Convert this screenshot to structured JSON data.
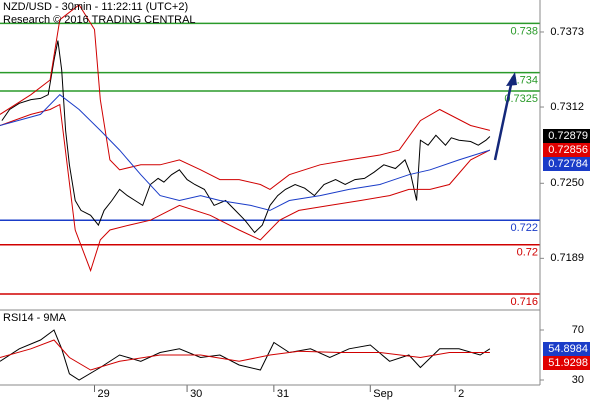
{
  "chart_data": [
    {
      "type": "line",
      "title": "NZD/USD - 30min - 11:22:11 (UTC+2)",
      "subtitle": "Research © 2016 TRADING CENTRAL",
      "xlim": [
        0,
        280
      ],
      "ylim": [
        0.7147,
        0.7399
      ],
      "yticks": [
        0.7373,
        0.7312,
        {
          "value": 0.725,
          "label": "0.7250"
        },
        0.7189
      ],
      "series": [
        {
          "color": "#000000",
          "x": [
            1,
            5,
            10,
            16,
            21,
            25,
            28,
            30,
            32,
            34,
            36,
            39,
            42,
            47,
            51,
            54,
            58,
            62,
            66,
            70,
            74,
            78,
            82,
            85,
            89,
            93,
            97,
            101,
            106,
            111,
            117,
            122,
            127,
            132,
            136,
            140,
            144,
            148,
            153,
            158,
            163,
            168,
            174,
            179,
            184,
            189,
            194,
            199,
            205,
            210,
            213,
            216,
            218,
            222,
            226,
            231,
            234,
            238,
            244,
            248,
            252,
            254
          ],
          "values": [
            0.7301,
            0.731,
            0.7315,
            0.7318,
            0.7319,
            0.7322,
            0.735,
            0.7366,
            0.7342,
            0.7293,
            0.7265,
            0.7236,
            0.7228,
            0.7224,
            0.7216,
            0.7228,
            0.7236,
            0.7245,
            0.724,
            0.7236,
            0.7232,
            0.7249,
            0.7254,
            0.7251,
            0.7257,
            0.7261,
            0.7253,
            0.7249,
            0.7245,
            0.7232,
            0.7236,
            0.7228,
            0.722,
            0.721,
            0.7216,
            0.7232,
            0.724,
            0.7245,
            0.7249,
            0.7246,
            0.724,
            0.7249,
            0.7253,
            0.7249,
            0.7253,
            0.7254,
            0.7259,
            0.7265,
            0.7262,
            0.7269,
            0.7257,
            0.7236,
            0.7285,
            0.7281,
            0.7289,
            0.7281,
            0.7287,
            0.7285,
            0.7284,
            0.7281,
            0.7285,
            0.7288
          ]
        },
        {
          "color": "#d00000",
          "x": [
            0,
            16,
            26,
            31,
            41,
            49,
            52,
            57,
            62,
            73,
            83,
            93,
            104,
            114,
            124,
            135,
            140,
            150,
            166,
            181,
            197,
            207,
            218,
            228,
            244,
            254
          ],
          "values": [
            0.7306,
            0.7322,
            0.7334,
            0.7383,
            0.7395,
            0.7375,
            0.7318,
            0.7269,
            0.7261,
            0.7265,
            0.7265,
            0.7269,
            0.7261,
            0.7253,
            0.7253,
            0.7249,
            0.7245,
            0.7257,
            0.7265,
            0.7269,
            0.7273,
            0.7277,
            0.7301,
            0.731,
            0.7297,
            0.7293
          ]
        },
        {
          "color": "#d00000",
          "x": [
            0,
            16,
            26,
            31,
            39,
            47,
            52,
            57,
            67,
            78,
            93,
            109,
            124,
            135,
            145,
            155,
            171,
            187,
            202,
            212,
            223,
            233,
            244,
            254
          ],
          "values": [
            0.7297,
            0.7306,
            0.731,
            0.7314,
            0.7212,
            0.7179,
            0.7204,
            0.7212,
            0.7216,
            0.722,
            0.7232,
            0.7224,
            0.7212,
            0.7204,
            0.722,
            0.7228,
            0.7232,
            0.7236,
            0.724,
            0.7245,
            0.7245,
            0.7249,
            0.7269,
            0.7277
          ]
        },
        {
          "color": "#1a3cc8",
          "x": [
            0,
            21,
            31,
            41,
            52,
            62,
            73,
            83,
            93,
            104,
            114,
            130,
            140,
            150,
            166,
            181,
            197,
            212,
            223,
            238,
            254
          ],
          "values": [
            0.7297,
            0.7306,
            0.7322,
            0.731,
            0.7293,
            0.7277,
            0.7257,
            0.724,
            0.7236,
            0.724,
            0.7236,
            0.7232,
            0.7228,
            0.7236,
            0.724,
            0.7245,
            0.7249,
            0.7257,
            0.7261,
            0.7269,
            0.7277
          ]
        }
      ],
      "levels": [
        {
          "value": 0.738,
          "color": "#2a9a2a"
        },
        {
          "value": 0.734,
          "color": "#2a9a2a"
        },
        {
          "value": 0.7325,
          "color": "#2a9a2a"
        },
        {
          "value": 0.722,
          "color": "#1a3cc8"
        },
        {
          "value": 0.72,
          "color": "#d00000"
        },
        {
          "value": 0.716,
          "color": "#d00000"
        }
      ],
      "price_labels": [
        {
          "value": 0.72879,
          "color": "#000000"
        },
        {
          "value": 0.72856,
          "color": "#e00000"
        },
        {
          "value": 0.72784,
          "color": "#1a3cc8"
        }
      ]
    },
    {
      "type": "line",
      "title": "RSI14 - 9MA",
      "xlim": [
        0,
        280
      ],
      "ylim": [
        26,
        84.4
      ],
      "yticks": [
        70,
        30
      ],
      "xticks": [
        {
          "value": 49,
          "label": "29"
        },
        {
          "value": 97,
          "label": "30"
        },
        {
          "value": 142,
          "label": "31"
        },
        {
          "value": 192,
          "label": "Sep"
        },
        {
          "value": 236,
          "label": "2"
        }
      ],
      "series": [
        {
          "color": "#000000",
          "x": [
            0,
            10,
            21,
            28,
            32,
            36,
            41,
            52,
            62,
            73,
            83,
            93,
            104,
            114,
            124,
            135,
            142,
            150,
            161,
            171,
            181,
            192,
            202,
            212,
            218,
            228,
            238,
            249,
            254
          ],
          "values": [
            45,
            55,
            62,
            70,
            55,
            35,
            30,
            40,
            50,
            45,
            52,
            55,
            48,
            50,
            42,
            38,
            60,
            52,
            55,
            48,
            55,
            58,
            45,
            50,
            40,
            55,
            55,
            50,
            55
          ]
        },
        {
          "color": "#d00000",
          "x": [
            0,
            16,
            28,
            36,
            47,
            62,
            83,
            104,
            124,
            140,
            155,
            176,
            197,
            218,
            233,
            254
          ],
          "values": [
            48,
            55,
            62,
            48,
            38,
            45,
            50,
            50,
            45,
            50,
            53,
            52,
            52,
            48,
            52,
            52
          ]
        }
      ],
      "price_labels": [
        {
          "value": 54.8984,
          "color": "#1a3cc8"
        },
        {
          "value": 51.9298,
          "color": "#e00000"
        }
      ]
    }
  ]
}
